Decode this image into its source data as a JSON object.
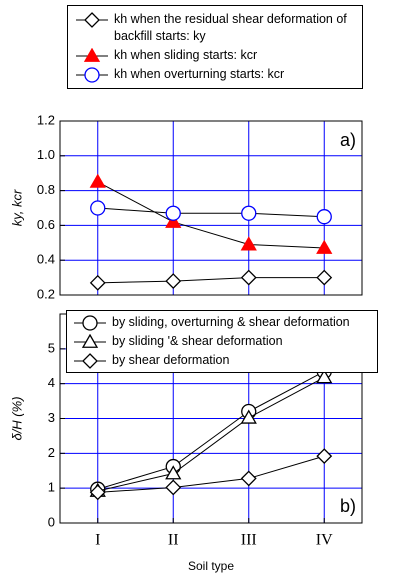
{
  "chart_data": [
    {
      "type": "line",
      "ylabel": "ky, kcr",
      "annotation": "a)",
      "legend": "above",
      "ylim": [
        0.2,
        1.2
      ],
      "yticks": [
        0.2,
        0.4,
        0.6,
        0.8,
        1.0,
        1.2
      ],
      "grid": true,
      "grid_color": "#0000ff",
      "series": [
        {
          "name": "kh when the residual shear deformation of backfill starts: ky",
          "color": "#000000",
          "marker": "diamond",
          "fill": "open",
          "values": [
            0.27,
            0.28,
            0.3,
            0.3
          ]
        },
        {
          "name": "kh when sliding starts: kcr",
          "color": "#ff0000",
          "marker": "triangle",
          "fill": "filled",
          "values": [
            0.85,
            0.62,
            0.49,
            0.47
          ]
        },
        {
          "name": "kh when overturning starts: kcr",
          "color": "#0000ff",
          "marker": "circle",
          "fill": "open",
          "values": [
            0.7,
            0.67,
            0.67,
            0.65
          ]
        }
      ]
    },
    {
      "type": "line",
      "xlabel": "Soil type",
      "ylabel": "δ/H (%)",
      "annotation": "b)",
      "legend": "upper left",
      "categories": [
        "I",
        "II",
        "III",
        "IV"
      ],
      "ylim": [
        0,
        6
      ],
      "yticks": [
        0,
        1,
        2,
        3,
        4,
        5
      ],
      "grid": true,
      "grid_color": "#0000ff",
      "series": [
        {
          "name": "by sliding, overturning & shear deformation",
          "color": "#000000",
          "marker": "circle",
          "fill": "open",
          "values": [
            0.97,
            1.62,
            3.2,
            4.35
          ]
        },
        {
          "name": "by sliding '& shear deformation",
          "color": "#000000",
          "marker": "triangle",
          "fill": "open",
          "values": [
            0.92,
            1.42,
            3.02,
            4.18
          ]
        },
        {
          "name": "by shear deformation",
          "color": "#000000",
          "marker": "diamond",
          "fill": "open",
          "values": [
            0.88,
            1.02,
            1.28,
            1.92
          ]
        }
      ]
    }
  ]
}
